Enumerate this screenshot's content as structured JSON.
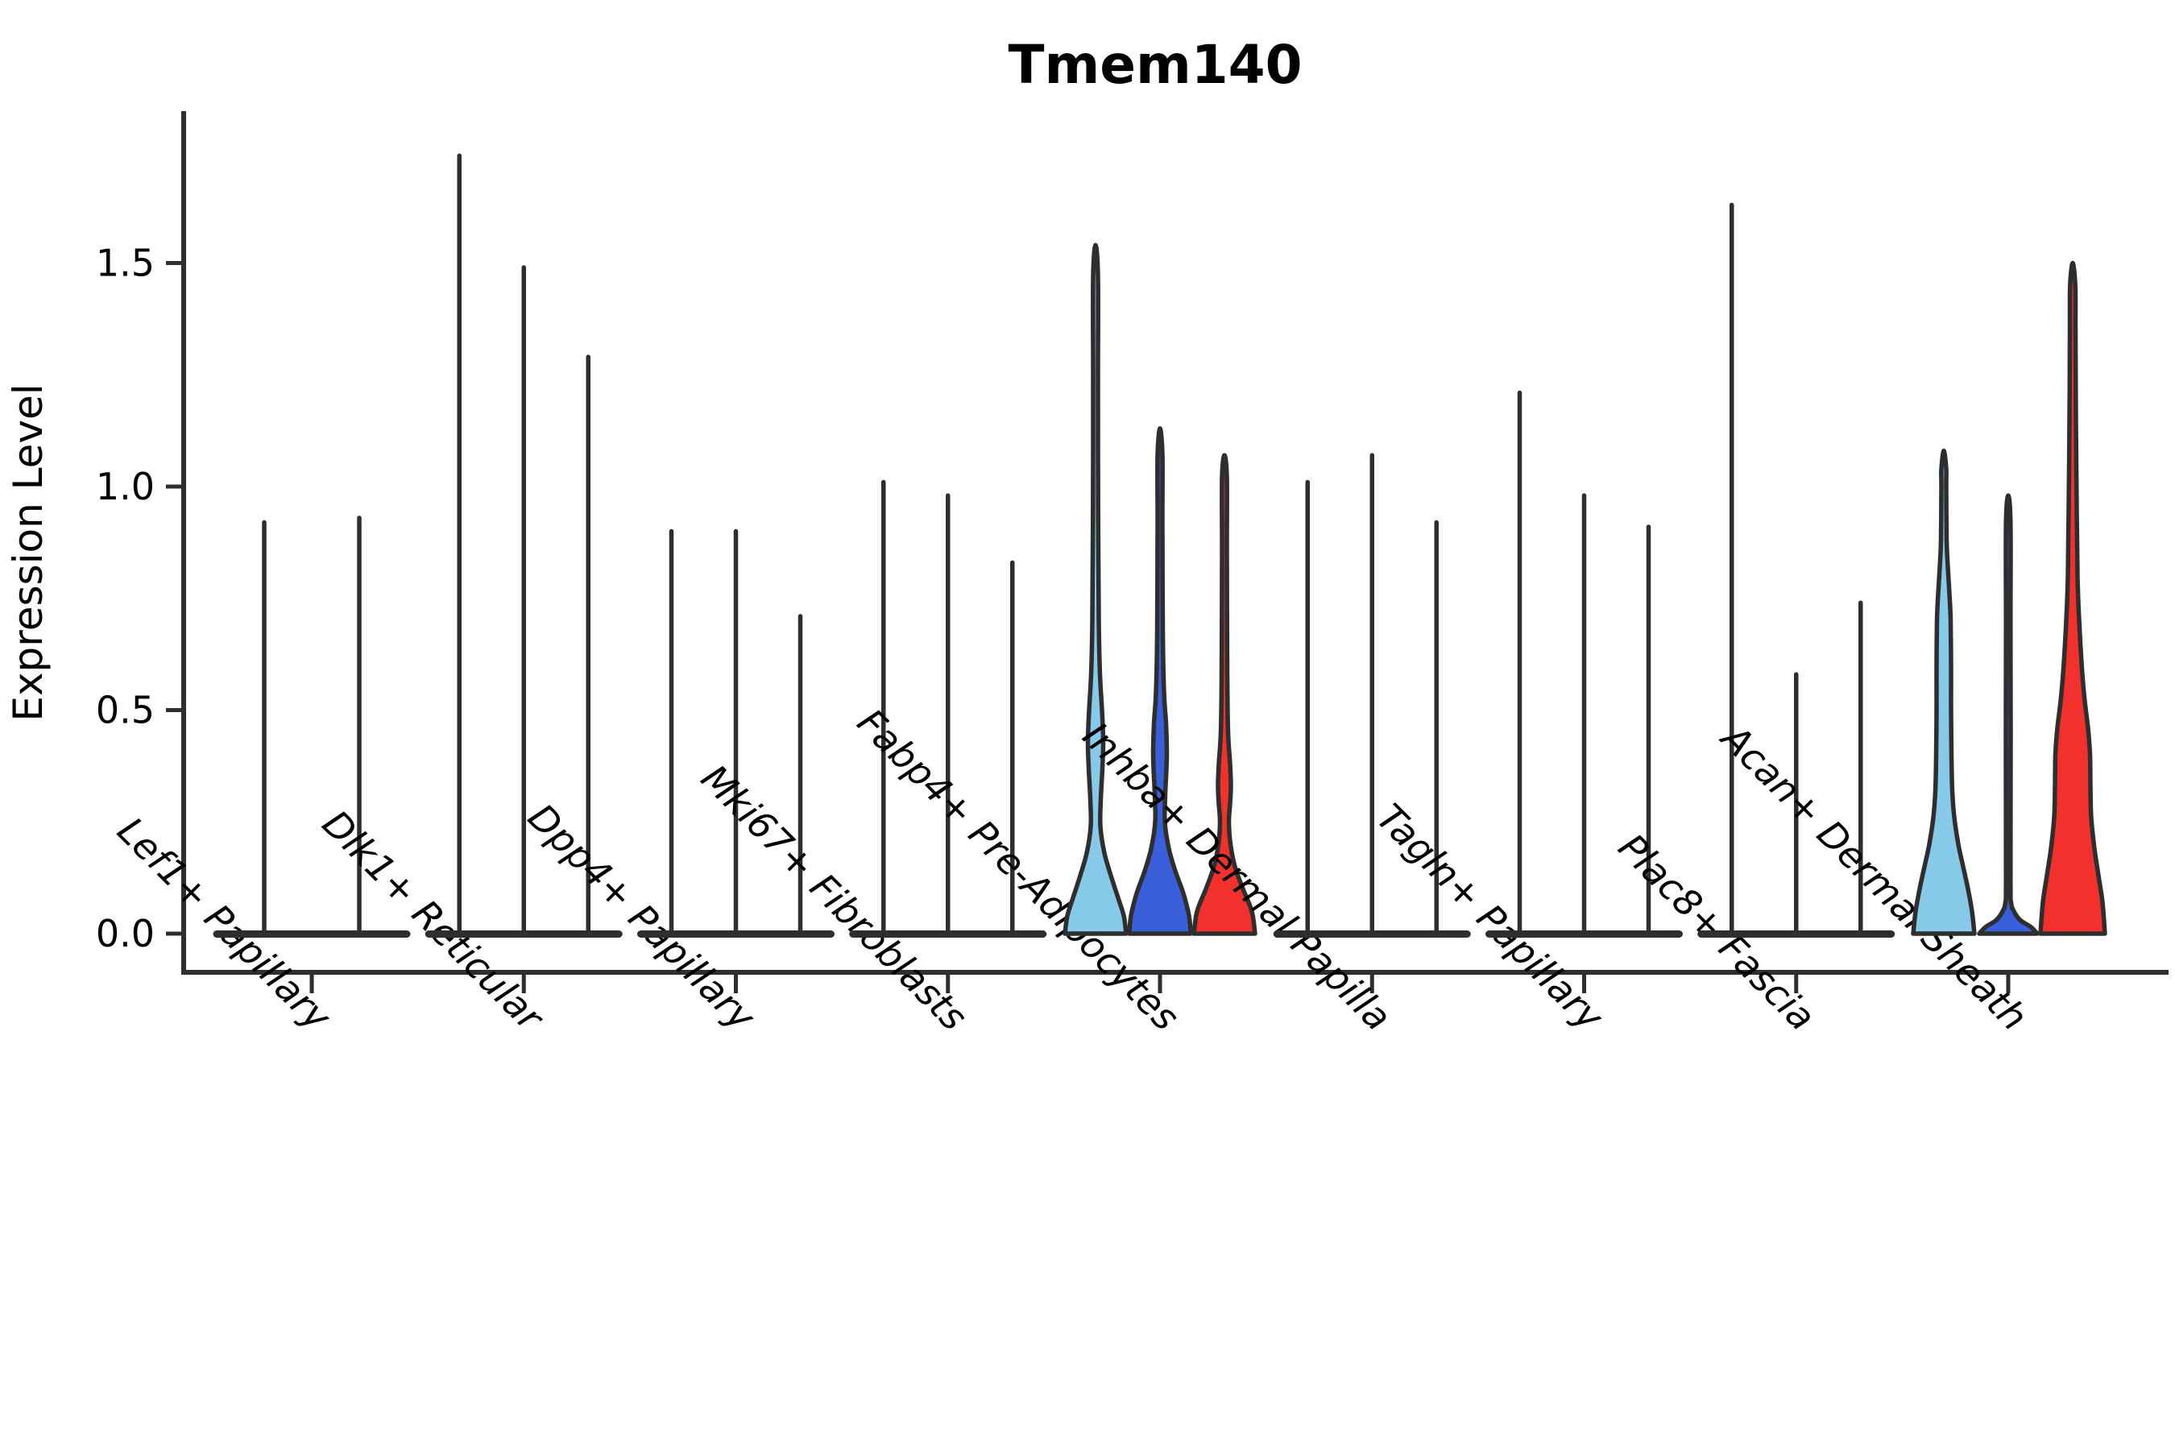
{
  "title": "Tmem140",
  "y_axis": {
    "label": "Expression Level",
    "tick_labels": [
      "0.0",
      "0.5",
      "1.0",
      "1.5"
    ],
    "tick_values": [
      0.0,
      0.5,
      1.0,
      1.5
    ]
  },
  "x_axis": {
    "categories": [
      "Lef1+ Papillary",
      "Dlk1+ Reticular",
      "Dpp4+ Papillary",
      "Mki67+ Fibroblasts",
      "Fabp4+ Pre-Adipocytes",
      "Inhba+ Dermal Papilla",
      "Tagln+ Papillary",
      "Plac8+ Fascia",
      "Acan+ Dermal Sheath"
    ]
  },
  "colors": {
    "ink": "#2E2E2E",
    "light_blue": "#86C9E9",
    "blue": "#3A5FDB",
    "red": "#F2312D",
    "text": "#000000",
    "background": "#FFFFFF"
  },
  "chart_data": {
    "type": "violin",
    "title": "Tmem140",
    "xlabel": "",
    "ylabel": "Expression Level",
    "ylim": [
      -0.09,
      1.84
    ],
    "grid": false,
    "legend": "none",
    "split_palette_by_slot": [
      "light_blue",
      "blue",
      "red"
    ],
    "categories": [
      "Lef1+ Papillary",
      "Dlk1+ Reticular",
      "Dpp4+ Papillary",
      "Mki67+ Fibroblasts",
      "Fabp4+ Pre-Adipocytes",
      "Inhba+ Dermal Papilla",
      "Tagln+ Papillary",
      "Plac8+ Fascia",
      "Acan+ Dermal Sheath"
    ],
    "groups": [
      {
        "category": "Lef1+ Papillary",
        "violins": [
          {
            "slot_offset": -59,
            "max": 0.92,
            "style": "spike",
            "color": null
          },
          {
            "slot_offset": 59,
            "max": 0.93,
            "style": "spike",
            "color": null
          }
        ]
      },
      {
        "category": "Dlk1+ Reticular",
        "violins": [
          {
            "slot_offset": -80,
            "max": 1.74,
            "style": "spike",
            "color": null
          },
          {
            "slot_offset": 0,
            "max": 1.49,
            "style": "spike",
            "color": null
          },
          {
            "slot_offset": 80,
            "max": 1.29,
            "style": "spike",
            "color": null
          }
        ]
      },
      {
        "category": "Dpp4+ Papillary",
        "violins": [
          {
            "slot_offset": -80,
            "max": 0.9,
            "style": "spike",
            "color": null
          },
          {
            "slot_offset": 0,
            "max": 0.9,
            "style": "spike",
            "color": null
          },
          {
            "slot_offset": 80,
            "max": 0.71,
            "style": "spike",
            "color": null
          }
        ]
      },
      {
        "category": "Mki67+ Fibroblasts",
        "violins": [
          {
            "slot_offset": -80,
            "max": 1.01,
            "style": "spike",
            "color": null
          },
          {
            "slot_offset": 0,
            "max": 0.98,
            "style": "spike",
            "color": null
          },
          {
            "slot_offset": 80,
            "max": 0.83,
            "style": "spike",
            "color": null
          }
        ]
      },
      {
        "category": "Fabp4+ Pre-Adipocytes",
        "violins": [
          {
            "slot_offset": -80,
            "max": 1.54,
            "style": "violin",
            "color": "light_blue",
            "profile": [
              [
                0,
                38
              ],
              [
                0.04,
                35
              ],
              [
                0.08,
                28
              ],
              [
                0.13,
                19
              ],
              [
                0.18,
                11
              ],
              [
                0.24,
                6
              ],
              [
                0.3,
                6.5
              ],
              [
                0.37,
                8.5
              ],
              [
                0.43,
                9.5
              ],
              [
                0.5,
                8
              ],
              [
                0.58,
                5.5
              ],
              [
                0.7,
                4
              ],
              [
                0.95,
                3.2
              ],
              [
                1.25,
                3
              ],
              [
                1.47,
                3
              ]
            ]
          },
          {
            "slot_offset": 0,
            "max": 1.13,
            "style": "violin",
            "color": "blue",
            "profile": [
              [
                0,
                38
              ],
              [
                0.04,
                36
              ],
              [
                0.09,
                29
              ],
              [
                0.14,
                19
              ],
              [
                0.19,
                11
              ],
              [
                0.25,
                6
              ],
              [
                0.31,
                6.5
              ],
              [
                0.37,
                8
              ],
              [
                0.41,
                8.5
              ],
              [
                0.47,
                7.5
              ],
              [
                0.54,
                5
              ],
              [
                0.68,
                3.5
              ],
              [
                0.92,
                3
              ],
              [
                1.07,
                3
              ]
            ]
          },
          {
            "slot_offset": 80,
            "max": 1.07,
            "style": "violin",
            "color": "red",
            "profile": [
              [
                0,
                38
              ],
              [
                0.05,
                34
              ],
              [
                0.1,
                23
              ],
              [
                0.15,
                13
              ],
              [
                0.2,
                7.5
              ],
              [
                0.25,
                5.5
              ],
              [
                0.29,
                7
              ],
              [
                0.33,
                8
              ],
              [
                0.38,
                7
              ],
              [
                0.45,
                4.5
              ],
              [
                0.58,
                3.5
              ],
              [
                0.85,
                3
              ],
              [
                1.02,
                3
              ]
            ]
          }
        ]
      },
      {
        "category": "Inhba+ Dermal Papilla",
        "violins": [
          {
            "slot_offset": -80,
            "max": 1.01,
            "style": "spike",
            "color": null
          },
          {
            "slot_offset": 0,
            "max": 1.07,
            "style": "spike",
            "color": null
          },
          {
            "slot_offset": 80,
            "max": 0.92,
            "style": "spike",
            "color": null
          }
        ]
      },
      {
        "category": "Tagln+ Papillary",
        "violins": [
          {
            "slot_offset": -80,
            "max": 1.21,
            "style": "spike",
            "color": null
          },
          {
            "slot_offset": 0,
            "max": 0.98,
            "style": "spike",
            "color": null
          },
          {
            "slot_offset": 80,
            "max": 0.91,
            "style": "spike",
            "color": null
          }
        ]
      },
      {
        "category": "Plac8+ Fascia",
        "violins": [
          {
            "slot_offset": -80,
            "max": 1.63,
            "style": "spike",
            "color": null
          },
          {
            "slot_offset": 0,
            "max": 0.58,
            "style": "spike",
            "color": null
          },
          {
            "slot_offset": 80,
            "max": 0.74,
            "style": "spike",
            "color": null
          }
        ]
      },
      {
        "category": "Acan+ Dermal Sheath",
        "violins": [
          {
            "slot_offset": -80,
            "max": 1.08,
            "style": "violin",
            "color": "light_blue",
            "profile": [
              [
                0,
                38
              ],
              [
                0.05,
                35
              ],
              [
                0.1,
                30
              ],
              [
                0.15,
                24
              ],
              [
                0.2,
                18
              ],
              [
                0.26,
                13
              ],
              [
                0.32,
                10.5
              ],
              [
                0.4,
                9.5
              ],
              [
                0.5,
                9
              ],
              [
                0.6,
                9
              ],
              [
                0.7,
                8.5
              ],
              [
                0.76,
                7
              ],
              [
                0.82,
                5
              ],
              [
                0.88,
                3.5
              ],
              [
                1.0,
                3
              ],
              [
                1.04,
                3
              ]
            ]
          },
          {
            "slot_offset": 0,
            "max": 0.98,
            "style": "violin",
            "color": "blue",
            "profile": [
              [
                0,
                36
              ],
              [
                0.015,
                28
              ],
              [
                0.03,
                15
              ],
              [
                0.05,
                7
              ],
              [
                0.07,
                3.5
              ],
              [
                0.12,
                2.8
              ],
              [
                0.45,
                3
              ],
              [
                0.7,
                2.8
              ],
              [
                0.92,
                2.8
              ]
            ]
          },
          {
            "slot_offset": 80,
            "max": 1.5,
            "style": "violin",
            "color": "red",
            "profile": [
              [
                0,
                40
              ],
              [
                0.07,
                37
              ],
              [
                0.13,
                32
              ],
              [
                0.19,
                27
              ],
              [
                0.26,
                23
              ],
              [
                0.33,
                22
              ],
              [
                0.4,
                21.5
              ],
              [
                0.46,
                19
              ],
              [
                0.52,
                15
              ],
              [
                0.58,
                12
              ],
              [
                0.65,
                9.5
              ],
              [
                0.72,
                7.5
              ],
              [
                0.8,
                6
              ],
              [
                0.95,
                5
              ],
              [
                1.15,
                4
              ],
              [
                1.35,
                3.5
              ],
              [
                1.45,
                3.2
              ]
            ]
          }
        ]
      }
    ]
  }
}
